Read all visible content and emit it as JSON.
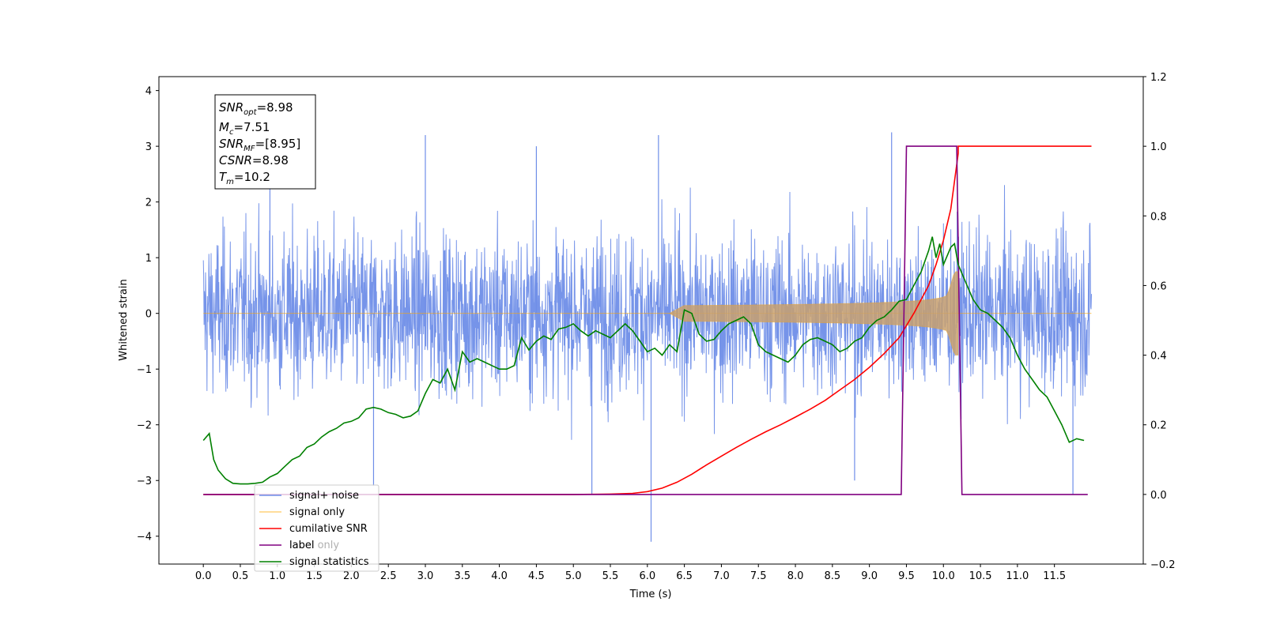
{
  "chart_data": {
    "type": "line",
    "xlabel": "Time (s)",
    "ylabel": "Whitened strain",
    "xlim": [
      -0.6,
      12.7
    ],
    "ylim": [
      -4.5,
      4.25
    ],
    "y2lim": [
      -0.2,
      1.2
    ],
    "x_ticks": [
      0.0,
      0.5,
      1.0,
      1.5,
      2.0,
      2.5,
      3.0,
      3.5,
      4.0,
      4.5,
      5.0,
      5.5,
      6.0,
      6.5,
      7.0,
      7.5,
      8.0,
      8.5,
      9.0,
      9.5,
      10.0,
      10.5,
      11.0,
      11.5
    ],
    "x_tick_labels": [
      "0.0",
      "0.5",
      "1.0",
      "1.5",
      "2.0",
      "2.5",
      "3.0",
      "3.5",
      "4.0",
      "4.5",
      "5.0",
      "5.5",
      "6.0",
      "6.5",
      "7.0",
      "7.5",
      "8.0",
      "8.5",
      "9.0",
      "9.5",
      "10.0",
      "10.5",
      "11.0",
      "11.5"
    ],
    "y_ticks": [
      -4,
      -3,
      -2,
      -1,
      0,
      1,
      2,
      3,
      4
    ],
    "y_tick_labels": [
      "−4",
      "−3",
      "−2",
      "−1",
      "0",
      "1",
      "2",
      "3",
      "4"
    ],
    "y2_ticks": [
      -0.2,
      0.0,
      0.2,
      0.4,
      0.6,
      0.8,
      1.0,
      1.2
    ],
    "y2_tick_labels": [
      "−0.2",
      "0.0",
      "0.2",
      "0.4",
      "0.6",
      "0.8",
      "1.0",
      "1.2"
    ],
    "grid": false,
    "legend_position": "lower-left",
    "series": [
      {
        "name": "signal+ noise",
        "axis": "left",
        "color": "#6f8ee8",
        "kind": "noise",
        "x_range": [
          0.0,
          12.0
        ],
        "approx_band": [
          -1.5,
          1.5
        ],
        "spikes": [
          [
            6.05,
            -4.1
          ],
          [
            9.3,
            3.25
          ],
          [
            6.15,
            3.2
          ],
          [
            5.25,
            -3.25
          ],
          [
            11.75,
            -3.25
          ],
          [
            3.0,
            3.2
          ],
          [
            4.5,
            3.0
          ],
          [
            8.8,
            -3.0
          ],
          [
            2.3,
            -3.1
          ],
          [
            0.9,
            2.9
          ]
        ]
      },
      {
        "name": "signal only",
        "axis": "left",
        "color": "#ffa500",
        "kind": "chirp",
        "start": 6.3,
        "merge": 10.2,
        "peak_amplitude": 0.75
      },
      {
        "name": "cumilative SNR",
        "axis": "right",
        "color": "#ff0000",
        "x": [
          0.0,
          5.0,
          5.5,
          5.8,
          6.0,
          6.2,
          6.4,
          6.6,
          6.8,
          7.0,
          7.2,
          7.4,
          7.6,
          7.8,
          8.0,
          8.2,
          8.4,
          8.6,
          8.8,
          9.0,
          9.2,
          9.4,
          9.6,
          9.8,
          9.9,
          10.0,
          10.1,
          10.15,
          10.2,
          10.2,
          12.0
        ],
        "y": [
          0.0,
          0.0,
          0.001,
          0.003,
          0.008,
          0.018,
          0.035,
          0.058,
          0.085,
          0.11,
          0.135,
          0.158,
          0.18,
          0.2,
          0.222,
          0.245,
          0.27,
          0.3,
          0.33,
          0.365,
          0.405,
          0.45,
          0.52,
          0.6,
          0.66,
          0.73,
          0.82,
          0.9,
          0.98,
          1.0,
          1.0
        ]
      },
      {
        "name": "label",
        "axis": "right",
        "color": "#800080",
        "x": [
          0.0,
          9.43,
          9.5,
          10.18,
          10.25,
          11.95
        ],
        "y": [
          0.0,
          0.0,
          1.0,
          1.0,
          0.0,
          0.0
        ]
      },
      {
        "name": "signal statistics",
        "axis": "right",
        "color": "#008000",
        "x": [
          0.0,
          0.08,
          0.14,
          0.2,
          0.3,
          0.4,
          0.5,
          0.6,
          0.7,
          0.8,
          0.9,
          1.0,
          1.1,
          1.2,
          1.3,
          1.4,
          1.5,
          1.6,
          1.7,
          1.8,
          1.9,
          2.0,
          2.1,
          2.2,
          2.3,
          2.4,
          2.5,
          2.6,
          2.7,
          2.8,
          2.9,
          3.0,
          3.1,
          3.2,
          3.3,
          3.4,
          3.5,
          3.6,
          3.7,
          3.8,
          3.9,
          4.0,
          4.1,
          4.2,
          4.3,
          4.4,
          4.5,
          4.6,
          4.7,
          4.8,
          4.9,
          5.0,
          5.1,
          5.2,
          5.3,
          5.4,
          5.5,
          5.6,
          5.7,
          5.8,
          5.9,
          6.0,
          6.1,
          6.2,
          6.3,
          6.4,
          6.5,
          6.6,
          6.7,
          6.8,
          6.9,
          7.0,
          7.1,
          7.2,
          7.3,
          7.4,
          7.5,
          7.6,
          7.7,
          7.8,
          7.9,
          8.0,
          8.1,
          8.2,
          8.3,
          8.4,
          8.5,
          8.6,
          8.7,
          8.8,
          8.9,
          9.0,
          9.1,
          9.2,
          9.3,
          9.4,
          9.5,
          9.6,
          9.7,
          9.8,
          9.85,
          9.9,
          9.95,
          10.0,
          10.1,
          10.15,
          10.2,
          10.3,
          10.4,
          10.5,
          10.6,
          10.7,
          10.8,
          10.9,
          11.0,
          11.1,
          11.2,
          11.3,
          11.4,
          11.5,
          11.6,
          11.7,
          11.8,
          11.9
        ],
        "y": [
          0.155,
          0.175,
          0.1,
          0.07,
          0.045,
          0.032,
          0.03,
          0.03,
          0.032,
          0.035,
          0.05,
          0.06,
          0.08,
          0.1,
          0.11,
          0.135,
          0.145,
          0.165,
          0.18,
          0.19,
          0.205,
          0.21,
          0.22,
          0.245,
          0.25,
          0.245,
          0.235,
          0.23,
          0.22,
          0.225,
          0.24,
          0.29,
          0.33,
          0.32,
          0.36,
          0.3,
          0.41,
          0.38,
          0.39,
          0.38,
          0.37,
          0.36,
          0.36,
          0.37,
          0.45,
          0.415,
          0.44,
          0.455,
          0.445,
          0.475,
          0.48,
          0.49,
          0.47,
          0.455,
          0.47,
          0.46,
          0.45,
          0.47,
          0.49,
          0.47,
          0.44,
          0.41,
          0.42,
          0.4,
          0.43,
          0.41,
          0.53,
          0.52,
          0.46,
          0.44,
          0.445,
          0.47,
          0.49,
          0.5,
          0.51,
          0.49,
          0.43,
          0.41,
          0.4,
          0.39,
          0.38,
          0.4,
          0.43,
          0.445,
          0.45,
          0.44,
          0.43,
          0.41,
          0.42,
          0.44,
          0.45,
          0.48,
          0.5,
          0.51,
          0.53,
          0.555,
          0.56,
          0.6,
          0.64,
          0.7,
          0.74,
          0.68,
          0.72,
          0.66,
          0.71,
          0.72,
          0.66,
          0.61,
          0.56,
          0.53,
          0.52,
          0.5,
          0.48,
          0.45,
          0.4,
          0.36,
          0.33,
          0.3,
          0.28,
          0.24,
          0.2,
          0.15,
          0.16,
          0.155
        ]
      }
    ],
    "annotation": {
      "lines": [
        {
          "base": "SNR",
          "sub": "opt",
          "value": "=8.98"
        },
        {
          "base": "M",
          "sub": "c",
          "value": "=7.51"
        },
        {
          "base": "SNR",
          "sub": "MF",
          "value": "=[8.95]"
        },
        {
          "base": "CSNR",
          "sub": "",
          "value": "=8.98"
        },
        {
          "base": "T",
          "sub": "m",
          "value": "=10.2"
        }
      ]
    },
    "legend_overlap_text": "label only"
  }
}
